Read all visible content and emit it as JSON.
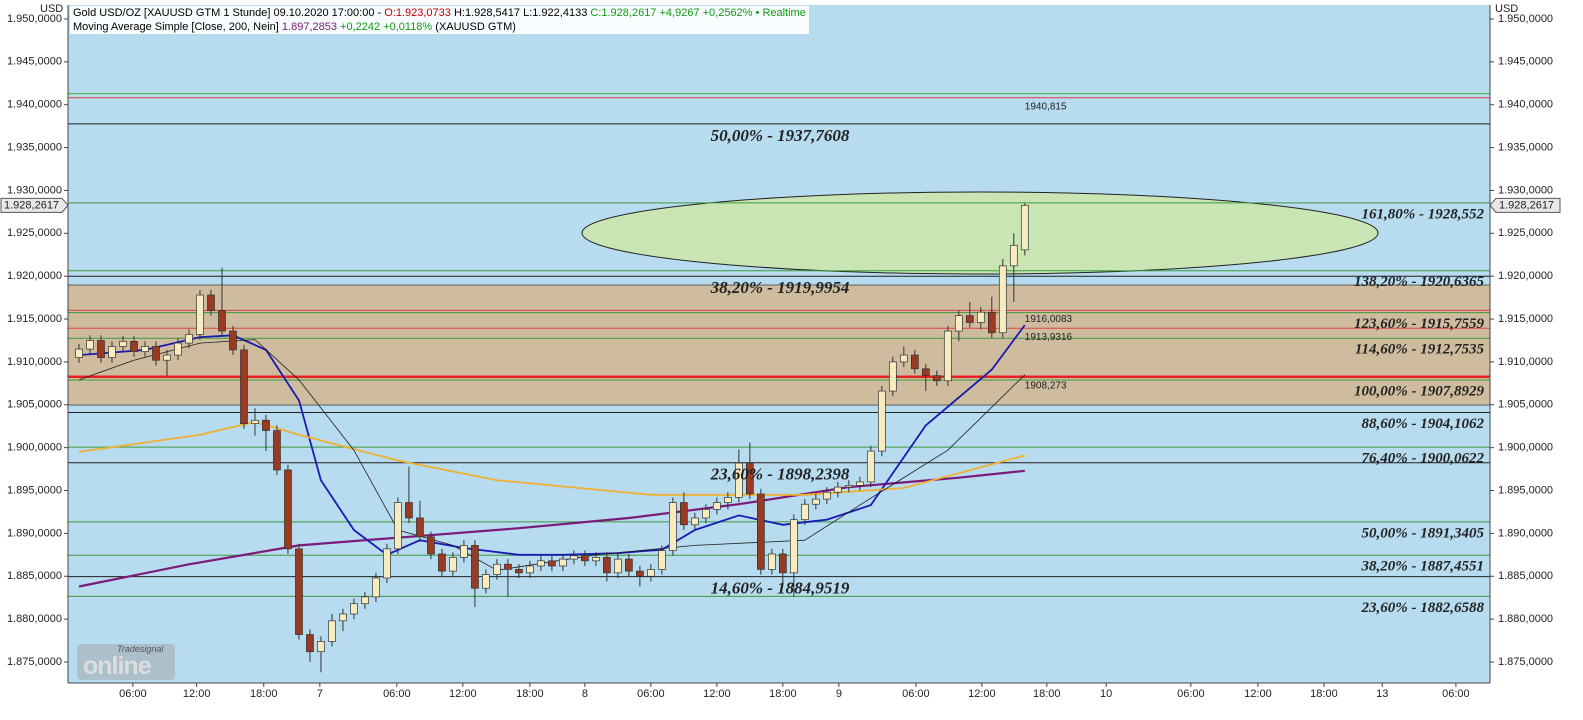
{
  "chart_data": {
    "type": "candlestick",
    "header": {
      "instrument": "Gold USD/OZ [XAUUSD GTM 1 Stunde] 09.10.2020 17:00:00 -",
      "open": "O:1.923,0733",
      "high": "H:1.928,5417",
      "low": "L:1.922,4133",
      "close": "C:1.928,2617 +4,9267 +0,2562%",
      "status": "• Realtime"
    },
    "ma_header": {
      "value": "1.897,2853",
      "change": "+0,2242 +0,0118%",
      "symbol": "(XAUUSD GTM)"
    },
    "axis_unit": "USD",
    "watermark": {
      "brand": "Tradesignal",
      "name": "online"
    },
    "xlim": [
      -1,
      128.3
    ],
    "xticks": [
      {
        "value": 4.9,
        "label": "06:00"
      },
      {
        "value": 10.7,
        "label": "12:00"
      },
      {
        "value": 16.8,
        "label": "18:00"
      },
      {
        "value": 21.9,
        "label": "7"
      },
      {
        "value": 28.9,
        "label": "06:00"
      },
      {
        "value": 34.9,
        "label": "12:00"
      },
      {
        "value": 41,
        "label": "18:00"
      },
      {
        "value": 46,
        "label": "8"
      },
      {
        "value": 52,
        "label": "06:00"
      },
      {
        "value": 58,
        "label": "12:00"
      },
      {
        "value": 64,
        "label": "18:00"
      },
      {
        "value": 69.1,
        "label": "9"
      },
      {
        "value": 76.1,
        "label": "06:00"
      },
      {
        "value": 82.1,
        "label": "12:00"
      },
      {
        "value": 88,
        "label": "18:00"
      },
      {
        "value": 93.4,
        "label": "10"
      },
      {
        "value": 101.1,
        "label": "06:00"
      },
      {
        "value": 107.2,
        "label": "12:00"
      },
      {
        "value": 113.2,
        "label": "18:00"
      },
      {
        "value": 118.5,
        "label": "13"
      },
      {
        "value": 125.2,
        "label": "06:00"
      }
    ],
    "ylim": [
      1872.55,
      1951.63
    ],
    "yticks": [
      {
        "value": 1875,
        "label": "1.875,0000"
      },
      {
        "value": 1880,
        "label": "1.880,0000"
      },
      {
        "value": 1885,
        "label": "1.885,0000"
      },
      {
        "value": 1890,
        "label": "1.890,0000"
      },
      {
        "value": 1895,
        "label": "1.895,0000"
      },
      {
        "value": 1900,
        "label": "1.900,0000"
      },
      {
        "value": 1905,
        "label": "1.905,0000"
      },
      {
        "value": 1910,
        "label": "1.910,0000"
      },
      {
        "value": 1915,
        "label": "1.915,0000"
      },
      {
        "value": 1920,
        "label": "1.920,0000"
      },
      {
        "value": 1925,
        "label": "1.925,0000"
      },
      {
        "value": 1930,
        "label": "1.930,0000"
      },
      {
        "value": 1935,
        "label": "1.935,0000"
      },
      {
        "value": 1940,
        "label": "1.940,0000"
      },
      {
        "value": 1945,
        "label": "1.945,0000"
      },
      {
        "value": 1950,
        "label": "1.950,0000"
      }
    ],
    "candles": {
      "up_color": "#f7ebc0",
      "down_color": "#9a3a22",
      "open": [
        1910.5,
        1911.5,
        1912.5,
        1910.5,
        1911.8,
        1912.4,
        1911.2,
        1911.8,
        1910.2,
        1910.8,
        1912.2,
        1913.2,
        1917.8,
        1916.0,
        1913.6,
        1911.4,
        1902.8,
        1903.2,
        1902.0,
        1897.4,
        1888.2,
        1878.2,
        1876.2,
        1877.4,
        1879.8,
        1880.6,
        1881.8,
        1882.6,
        1884.8,
        1888.2,
        1893.6,
        1891.8,
        1889.6,
        1887.6,
        1885.6,
        1887.2,
        1888.6,
        1883.6,
        1885.2,
        1886.4,
        1885.8,
        1885.4,
        1886.2,
        1886.8,
        1886.2,
        1887.0,
        1887.4,
        1886.8,
        1887.2,
        1885.4,
        1887.0,
        1885.6,
        1885.0,
        1885.8,
        1888.0,
        1893.6,
        1891.0,
        1891.8,
        1892.8,
        1893.6,
        1894.2,
        1898.2,
        1894.6,
        1885.8,
        1887.6,
        1885.4,
        1891.6,
        1893.4,
        1894.0,
        1894.8,
        1895.4,
        1895.6,
        1896.0,
        1899.6,
        1906.6,
        1910.0,
        1910.8,
        1909.2,
        1908.4,
        1907.8,
        1913.6,
        1915.4,
        1914.6,
        1915.8,
        1913.4,
        1921.2,
        1923.0733
      ],
      "high": [
        1912.1,
        1913.1,
        1913.1,
        1912.4,
        1913.0,
        1913.0,
        1912.4,
        1912.4,
        1911.4,
        1912.8,
        1913.8,
        1918.4,
        1918.4,
        1921.0,
        1914.2,
        1912.0,
        1904.6,
        1903.8,
        1902.6,
        1898.0,
        1888.8,
        1878.8,
        1878.0,
        1880.6,
        1881.2,
        1882.4,
        1883.2,
        1885.4,
        1888.8,
        1894.2,
        1897.8,
        1893.8,
        1890.2,
        1888.2,
        1887.8,
        1889.2,
        1889.2,
        1885.8,
        1887.0,
        1887.0,
        1886.4,
        1886.8,
        1887.4,
        1887.4,
        1887.6,
        1888.0,
        1888.0,
        1887.8,
        1887.8,
        1887.6,
        1887.6,
        1886.2,
        1886.4,
        1888.6,
        1894.2,
        1894.8,
        1892.4,
        1893.4,
        1894.2,
        1894.8,
        1899.8,
        1900.6,
        1895.2,
        1888.2,
        1888.2,
        1892.2,
        1894.0,
        1894.6,
        1895.4,
        1896.0,
        1896.2,
        1896.6,
        1900.2,
        1907.2,
        1910.6,
        1911.8,
        1911.4,
        1909.8,
        1909.0,
        1914.2,
        1916.0,
        1917.0,
        1916.4,
        1917.6,
        1922.0,
        1925.0,
        1928.5417
      ],
      "low": [
        1909.9,
        1910.9,
        1909.9,
        1909.9,
        1911.2,
        1910.6,
        1910.6,
        1909.6,
        1908.4,
        1910.2,
        1911.6,
        1912.6,
        1915.4,
        1913.0,
        1910.8,
        1902.2,
        1901.4,
        1899.6,
        1896.8,
        1887.6,
        1877.6,
        1875.0,
        1873.8,
        1876.8,
        1878.6,
        1880.0,
        1881.2,
        1882.0,
        1884.2,
        1887.6,
        1891.2,
        1889.0,
        1887.0,
        1885.0,
        1885.0,
        1886.6,
        1881.4,
        1883.0,
        1884.6,
        1882.6,
        1884.8,
        1884.8,
        1885.6,
        1885.6,
        1885.6,
        1886.4,
        1886.2,
        1886.2,
        1884.4,
        1884.8,
        1885.0,
        1883.8,
        1884.4,
        1885.2,
        1887.4,
        1890.4,
        1890.4,
        1891.2,
        1892.2,
        1892.8,
        1893.6,
        1894.0,
        1885.2,
        1885.2,
        1884.0,
        1882.6,
        1891.0,
        1892.8,
        1893.4,
        1894.2,
        1894.8,
        1895.0,
        1895.4,
        1899.0,
        1906.0,
        1909.4,
        1908.6,
        1906.6,
        1907.2,
        1907.2,
        1912.4,
        1914.0,
        1913.8,
        1912.8,
        1912.8,
        1917.0,
        1922.4133
      ],
      "close": [
        1911.5,
        1912.5,
        1910.5,
        1911.8,
        1912.4,
        1911.2,
        1911.8,
        1910.2,
        1910.8,
        1912.2,
        1913.2,
        1917.8,
        1916.0,
        1913.6,
        1911.4,
        1902.8,
        1903.2,
        1902.0,
        1897.4,
        1888.2,
        1878.2,
        1876.2,
        1877.4,
        1879.8,
        1880.6,
        1881.8,
        1882.6,
        1884.8,
        1888.2,
        1893.6,
        1891.8,
        1889.6,
        1887.6,
        1885.6,
        1887.2,
        1888.6,
        1883.6,
        1885.2,
        1886.4,
        1885.8,
        1885.4,
        1886.2,
        1886.8,
        1886.2,
        1887.0,
        1887.4,
        1886.8,
        1887.2,
        1885.4,
        1887.0,
        1885.6,
        1885.0,
        1885.8,
        1888.0,
        1893.6,
        1891.0,
        1891.8,
        1892.8,
        1893.6,
        1894.2,
        1898.2,
        1894.6,
        1885.8,
        1887.6,
        1885.4,
        1891.6,
        1893.4,
        1894.0,
        1894.8,
        1895.4,
        1895.6,
        1896.0,
        1899.6,
        1906.6,
        1910.0,
        1910.8,
        1909.2,
        1908.4,
        1907.8,
        1913.6,
        1915.4,
        1914.6,
        1915.8,
        1913.4,
        1921.2,
        1923.6,
        1928.2617
      ]
    },
    "series": [
      {
        "name": "Moving Average Simple [Close, 200, Nein]",
        "color": "#7a1a7a",
        "width": 2.2,
        "x": [
          0,
          10,
          20,
          30,
          40,
          50,
          60,
          70,
          80,
          86
        ],
        "values": [
          1883.8,
          1886.4,
          1888.6,
          1889.6,
          1890.6,
          1891.8,
          1893.4,
          1895.4,
          1896.5,
          1897.3
        ]
      },
      {
        "color": "#1a1ab4",
        "width": 1.8,
        "x": [
          0,
          6,
          11,
          14,
          17,
          20,
          22,
          25,
          28,
          31,
          35,
          40,
          44,
          49,
          53,
          56,
          60,
          64,
          68,
          72,
          77,
          83,
          86
        ],
        "values": [
          1910.8,
          1911.4,
          1912.9,
          1913.1,
          1911.4,
          1905.5,
          1896.2,
          1890.4,
          1887.5,
          1889.2,
          1888.3,
          1887.5,
          1887.5,
          1887.7,
          1888.1,
          1890.4,
          1892.1,
          1891.0,
          1891.6,
          1893.3,
          1902.6,
          1909.1,
          1914.3
        ]
      },
      {
        "color": "#f0b030",
        "width": 1.8,
        "x": [
          0,
          11,
          16,
          20,
          29,
          38,
          52,
          66,
          75,
          86
        ],
        "values": [
          1899.5,
          1901.5,
          1903.0,
          1901.5,
          1898.5,
          1896.2,
          1894.5,
          1894.5,
          1895.3,
          1899.1
        ]
      },
      {
        "color": "#202020",
        "width": 0.8,
        "x": [
          0,
          5,
          11,
          16,
          20,
          25,
          29,
          34,
          38,
          47,
          56,
          66,
          71,
          79,
          86
        ],
        "values": [
          1907.9,
          1910.2,
          1912.2,
          1912.6,
          1907.9,
          1899.7,
          1890.4,
          1888.6,
          1885.7,
          1887.5,
          1888.6,
          1889.2,
          1893.3,
          1899.7,
          1908.5
        ]
      }
    ],
    "zones": [
      {
        "from": 1904.97,
        "to": 1918.97,
        "color": "#d4b690"
      }
    ],
    "levels": [
      {
        "value": 1941.3,
        "color": "#3cb43c"
      },
      {
        "value": 1940.815,
        "label": "1940,815",
        "color": "#e04040",
        "label_position": "marker",
        "label_color": "#d01010"
      },
      {
        "value": 1937.7608,
        "label": "50,00% - 1937,7608",
        "color": "#202020",
        "label_position": "center",
        "label_color": "#000000"
      },
      {
        "value": 1928.552,
        "label": "161,80% - 1928,552",
        "color": "#3c9a3c",
        "label_position": "right",
        "label_color": "#167a16"
      },
      {
        "value": 1920.6365,
        "label": "138,20% - 1920,6365",
        "color": "#3c9a3c",
        "label_position": "right",
        "label_color": "#167a16"
      },
      {
        "value": 1919.9954,
        "label": "38,20% - 1919,9954",
        "color": "#202020",
        "label_position": "center",
        "label_color": "#000000"
      },
      {
        "value": 1916.0083,
        "label": "1916,0083",
        "color": "#e04040",
        "label_position": "marker",
        "label_color": "#d01010"
      },
      {
        "value": 1915.7559,
        "label": "123,60% - 1915,7559",
        "color": "#3c9a3c",
        "label_position": "right",
        "label_color": "#167a16"
      },
      {
        "value": 1913.9316,
        "label": "1913,9316",
        "color": "#e04040",
        "label_position": "marker",
        "label_color": "#d01010"
      },
      {
        "value": 1912.7535,
        "label": "114,60% - 1912,7535",
        "color": "#3c9a3c",
        "label_position": "right",
        "label_color": "#167a16"
      },
      {
        "value": 1908.273,
        "label": "1908,273",
        "color": "#e82020",
        "width": 2.5,
        "label_position": "marker",
        "label_color": "#d01010"
      },
      {
        "value": 1907.8929,
        "label": "100,00% - 1907,8929",
        "color": "#3c9a3c",
        "label_position": "right",
        "label_color": "#167a16"
      },
      {
        "value": 1904.1062,
        "label": "88,60% - 1904,1062",
        "color": "#202020",
        "label_position": "right",
        "label_color": "#167a16"
      },
      {
        "value": 1900.0622,
        "label": "76,40% - 1900,0622",
        "color": "#3c9a3c",
        "label_position": "right",
        "label_color": "#167a16"
      },
      {
        "value": 1898.2398,
        "label": "23,60% - 1898,2398",
        "color": "#202020",
        "label_position": "center",
        "label_color": "#000000"
      },
      {
        "value": 1891.3405,
        "label": "50,00% - 1891,3405",
        "color": "#3c9a3c",
        "label_position": "right",
        "label_color": "#167a16"
      },
      {
        "value": 1887.4551,
        "label": "38,20% - 1887,4551",
        "color": "#3c9a3c",
        "label_position": "right",
        "label_color": "#167a16"
      },
      {
        "value": 1884.9519,
        "label": "14,60% - 1884,9519",
        "color": "#202020",
        "label_position": "center",
        "label_color": "#000000"
      },
      {
        "value": 1882.6588,
        "label": "23,60% - 1882,6588",
        "color": "#3c9a3c",
        "label_position": "right",
        "label_color": "#167a16"
      }
    ],
    "last_price": {
      "value": 1928.2617,
      "label": "1.928,2617"
    }
  }
}
